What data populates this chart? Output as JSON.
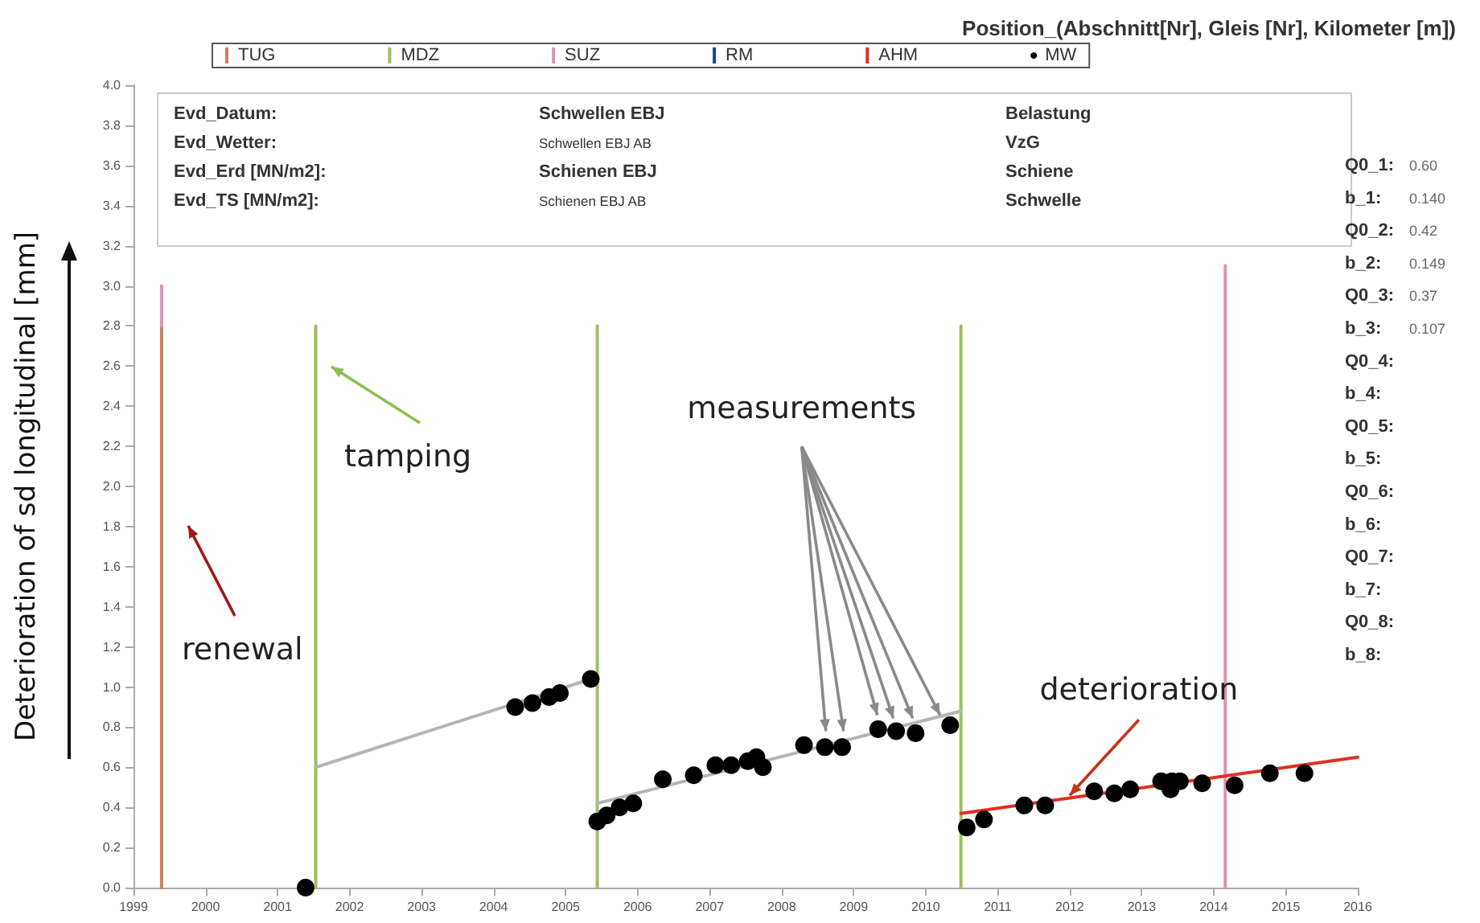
{
  "chart_data": {
    "type": "scatter",
    "title": "Position_(Abschnitt[Nr], Gleis [Nr], Kilometer [m])",
    "ylabel": "Deterioration of sd longitudinal [mm]",
    "xlim": [
      1999,
      2016
    ],
    "xticks": [
      1999,
      2000,
      2001,
      2002,
      2003,
      2004,
      2005,
      2006,
      2007,
      2008,
      2009,
      2010,
      2011,
      2012,
      2013,
      2014,
      2015,
      2016
    ],
    "ylim": [
      0,
      4
    ],
    "yticks": [
      {
        "value": 0,
        "label": "0.0"
      },
      0.2,
      0.4,
      0.6,
      0.8,
      {
        "value": 1,
        "label": "1.0"
      },
      1.2,
      1.4,
      1.6,
      1.8,
      {
        "value": 2,
        "label": "2.0"
      },
      2.2,
      2.4,
      2.6,
      2.8,
      {
        "value": 3,
        "label": "3.0"
      },
      3.2,
      3.4,
      3.6,
      3.8,
      {
        "value": 4,
        "label": "4.0"
      }
    ],
    "grid": false,
    "legend": "top",
    "marker": "circle",
    "series": [
      {
        "name": "TUG",
        "type": "line",
        "marker": "none",
        "color": "#d08060",
        "x": [
          1999.39,
          1999.39
        ],
        "values": [
          0,
          2.8
        ]
      },
      {
        "name": "MDZ",
        "type": "line",
        "marker": "none",
        "color": "#9cc05a",
        "x": [
          2001.53,
          2001.53
        ],
        "values": [
          0,
          2.8
        ]
      },
      {
        "type": "line",
        "marker": "none",
        "color": "#9cc05a",
        "x": [
          2005.44,
          2005.44
        ],
        "values": [
          0,
          2.8
        ]
      },
      {
        "type": "line",
        "marker": "none",
        "color": "#9cc05a",
        "x": [
          2010.49,
          2010.49
        ],
        "values": [
          0,
          2.8
        ]
      },
      {
        "name": "SUZ",
        "type": "line",
        "marker": "none",
        "color": "#e58fb5",
        "x": [
          1999.39,
          1999.39
        ],
        "values": [
          2.8,
          3.0
        ]
      },
      {
        "type": "line",
        "marker": "none",
        "color": "#e58fb5",
        "x": [
          2014.16,
          2014.16
        ],
        "values": [
          0,
          3.1
        ]
      },
      {
        "name": "RM",
        "type": "line",
        "marker": "none",
        "color": "#1f3f99"
      },
      {
        "name": "AHM",
        "type": "line",
        "marker": "none",
        "color": "#e03020"
      },
      {
        "name": "MW",
        "color": "#000000",
        "x": [
          2001.39,
          2004.3,
          2004.54,
          2004.77,
          2004.92,
          2005.35,
          2005.44,
          2005.57,
          2005.75,
          2005.94,
          2006.35,
          2006.78,
          2007.08,
          2007.3,
          2007.53,
          2007.65,
          2007.74,
          2008.31,
          2008.6,
          2008.84,
          2009.34,
          2009.59,
          2009.86,
          2010.34,
          2010.57,
          2010.81,
          2011.37,
          2011.66,
          2012.34,
          2012.62,
          2012.84,
          2013.27,
          2013.4,
          2013.42,
          2013.53,
          2013.83,
          2013.84,
          2014.29,
          2014.78,
          2015.26
        ],
        "values": [
          0,
          0.9,
          0.92,
          0.95,
          0.97,
          1.04,
          0.33,
          0.36,
          0.4,
          0.42,
          0.54,
          0.56,
          0.61,
          0.61,
          0.63,
          0.65,
          0.6,
          0.71,
          0.7,
          0.7,
          0.79,
          0.78,
          0.77,
          0.81,
          0.3,
          0.34,
          0.41,
          0.41,
          0.48,
          0.47,
          0.49,
          0.53,
          0.49,
          0.53,
          0.53,
          null,
          0.52,
          0.51,
          0.57,
          0.57
        ]
      },
      {
        "type": "line",
        "marker": "none",
        "color": "#b4b4b4",
        "x": [
          2001.53,
          2005.44
        ],
        "values": [
          0.6,
          1.05
        ]
      },
      {
        "type": "line",
        "marker": "none",
        "color": "#b4b4b4",
        "x": [
          2005.44,
          2010.49
        ],
        "values": [
          0.42,
          0.88
        ]
      },
      {
        "type": "line",
        "marker": "none",
        "color": "#e03020",
        "x": [
          2010.49,
          2016
        ],
        "values": [
          0.37,
          0.65
        ]
      }
    ],
    "annotations": [
      "Evd_Datum:",
      "Schwellen EBJ",
      "Belastung",
      "Evd_Wetter:",
      "Schwellen EBJ AB",
      "VzG",
      "Evd_Erd [MN/m2]:",
      "Schienen EBJ",
      "Schiene",
      "Evd_TS [MN/m2]:",
      "Schienen EBJ AB",
      "Schwelle",
      "Q0_1: 0.60",
      "b_1: 0.140",
      "Q0_2: 0.42",
      "b_2: 0.149",
      "Q0_3: 0.37",
      "b_3: 0.107",
      "Q0_4:",
      "b_4:",
      "Q0_5:",
      "b_5:",
      "Q0_6:",
      "b_6:",
      "Q0_7:",
      "b_7:",
      "Q0_8:",
      "b_8:",
      "tamping",
      "renewal",
      {
        "text": "measurements",
        "x": 2010.2,
        "y": 0.86
      },
      {
        "text": "deterioration",
        "x": 2012,
        "y": 0.46
      }
    ]
  }
}
